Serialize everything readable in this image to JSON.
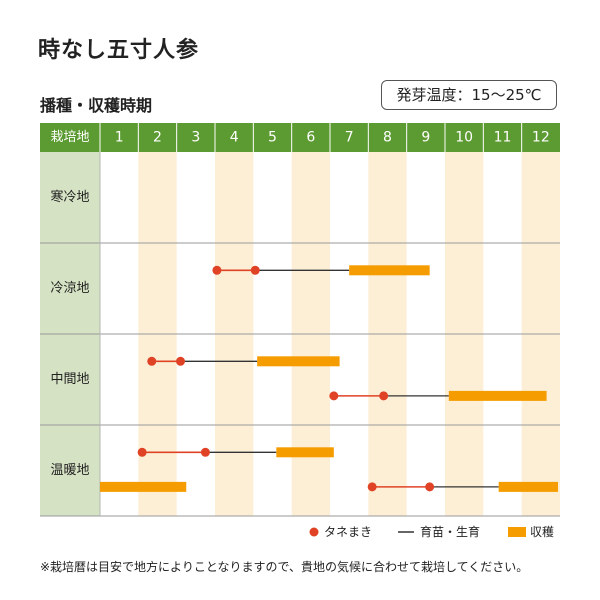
{
  "title": "時なし五寸人参",
  "temperature_label": "発芽温度：15～25℃",
  "schedule_title": "播種・収穫時期",
  "footnote": "※栽培暦は目安で地方によりことなりますので、貴地の気候に合わせて栽培してください。",
  "colors": {
    "header_green": "#5c9a32",
    "region_green": "#d6e2c4",
    "stripe": "#fcefd5",
    "sow": "#e04226",
    "sow_line": "#e04226",
    "grow_line": "#333333",
    "harvest": "#f59c00"
  },
  "chart_data": {
    "type": "gantt",
    "header_label": "栽培地",
    "months": [
      "1",
      "2",
      "3",
      "4",
      "5",
      "6",
      "7",
      "8",
      "9",
      "10",
      "11",
      "12"
    ],
    "regions": [
      {
        "name": "寒冷地",
        "schedules": []
      },
      {
        "name": "冷涼地",
        "schedules": [
          {
            "sow_start": 4.05,
            "sow_end": 5.05,
            "grow_end": 7.5,
            "harvest_start": 7.5,
            "harvest_end": 9.6
          }
        ]
      },
      {
        "name": "中間地",
        "schedules": [
          {
            "sow_start": 2.35,
            "sow_end": 3.1,
            "grow_end": 5.1,
            "harvest_start": 5.1,
            "harvest_end": 7.25
          },
          {
            "sow_start": 7.1,
            "sow_end": 8.4,
            "grow_end": 10.1,
            "harvest_start": 10.1,
            "harvest_end": 12.65
          }
        ]
      },
      {
        "name": "温暖地",
        "schedules": [
          {
            "sow_start": 2.1,
            "sow_end": 3.75,
            "grow_end": 5.6,
            "harvest_start": 5.6,
            "harvest_end": 7.1
          },
          {
            "sow_start": 8.1,
            "sow_end": 9.6,
            "grow_end": 11.4,
            "harvest_start": 11.4,
            "harvest_end": 13.0
          },
          {
            "harvest_only": true,
            "harvest_start": 1.0,
            "harvest_end": 3.25
          }
        ]
      }
    ],
    "legend": [
      {
        "key": "sow",
        "label": "タネまき"
      },
      {
        "key": "grow",
        "label": "育苗・生育"
      },
      {
        "key": "harvest",
        "label": "収穫"
      }
    ]
  }
}
